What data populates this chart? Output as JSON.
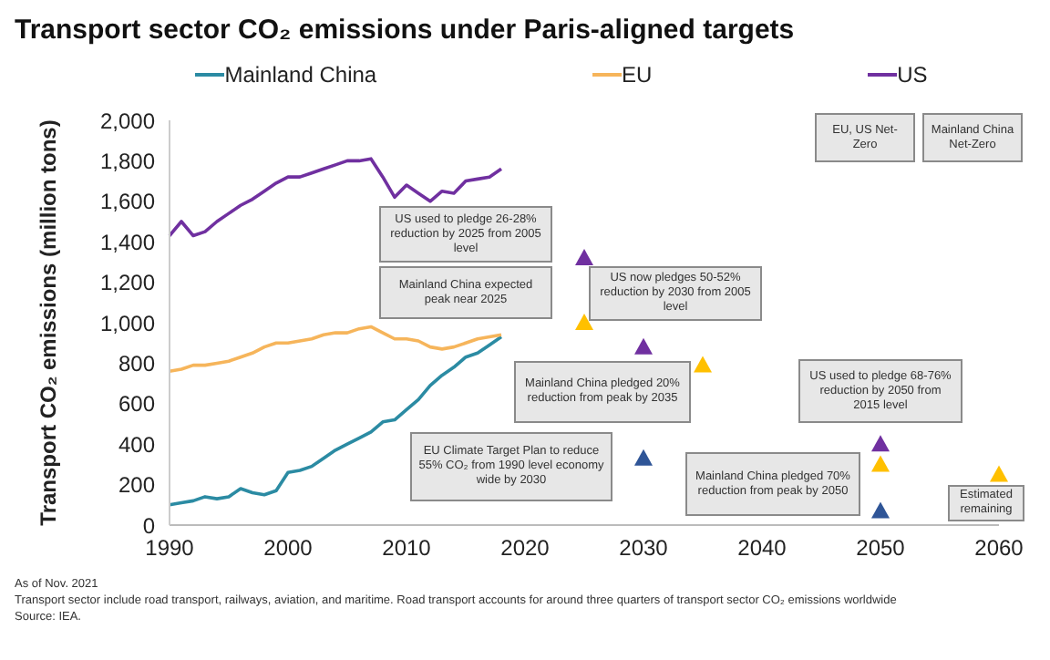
{
  "chart_data": {
    "type": "line",
    "title": "Transport sector CO₂ emissions under Paris-aligned targets",
    "ylabel": "Transport CO₂ emissions (million tons)",
    "xlim": [
      1990,
      2060
    ],
    "xticks": [
      1990,
      2000,
      2010,
      2020,
      2030,
      2040,
      2050,
      2060
    ],
    "ylim": [
      0,
      2000
    ],
    "yticks": [
      0,
      200,
      400,
      600,
      800,
      {
        "value": 1000,
        "label": "1,000"
      },
      {
        "value": 1200,
        "label": "1,200"
      },
      {
        "value": 1400,
        "label": "1,400"
      },
      {
        "value": 1600,
        "label": "1,600"
      },
      {
        "value": 1800,
        "label": "1,800"
      },
      {
        "value": 2000,
        "label": "2,000"
      }
    ],
    "grid": false,
    "legend": "top",
    "line_style": "solid",
    "series": [
      {
        "name": "Mainland China",
        "color": "#2b8ba3",
        "marker": "none",
        "x": [
          1990,
          1991,
          1992,
          1993,
          1994,
          1995,
          1996,
          1997,
          1998,
          1999,
          2000,
          2001,
          2002,
          2003,
          2004,
          2005,
          2006,
          2007,
          2008,
          2009,
          2010,
          2011,
          2012,
          2013,
          2014,
          2015,
          2016,
          2017,
          2018
        ],
        "values": [
          100,
          110,
          120,
          140,
          130,
          140,
          180,
          160,
          150,
          170,
          260,
          270,
          290,
          330,
          370,
          400,
          430,
          460,
          510,
          520,
          570,
          620,
          690,
          740,
          780,
          830,
          850,
          890,
          930
        ]
      },
      {
        "name": "EU",
        "color": "#f6b55b",
        "marker": "none",
        "x": [
          1990,
          1991,
          1992,
          1993,
          1994,
          1995,
          1996,
          1997,
          1998,
          1999,
          2000,
          2001,
          2002,
          2003,
          2004,
          2005,
          2006,
          2007,
          2008,
          2009,
          2010,
          2011,
          2012,
          2013,
          2014,
          2015,
          2016,
          2017,
          2018
        ],
        "values": [
          760,
          770,
          790,
          790,
          800,
          810,
          830,
          850,
          880,
          900,
          900,
          910,
          920,
          940,
          950,
          950,
          970,
          980,
          950,
          920,
          920,
          910,
          880,
          870,
          880,
          900,
          920,
          930,
          940
        ]
      },
      {
        "name": "US",
        "color": "#7030a0",
        "marker": "none",
        "x": [
          1990,
          1991,
          1992,
          1993,
          1994,
          1995,
          1996,
          1997,
          1998,
          1999,
          2000,
          2001,
          2002,
          2003,
          2004,
          2005,
          2006,
          2007,
          2008,
          2009,
          2010,
          2011,
          2012,
          2013,
          2014,
          2015,
          2016,
          2017,
          2018
        ],
        "values": [
          1430,
          1500,
          1430,
          1450,
          1500,
          1540,
          1580,
          1610,
          1650,
          1690,
          1720,
          1720,
          1740,
          1760,
          1780,
          1800,
          1800,
          1810,
          1720,
          1620,
          1680,
          1640,
          1600,
          1650,
          1640,
          1700,
          1710,
          1720,
          1760
        ]
      },
      {
        "type": "scatter",
        "color": "#7030a0",
        "marker": "triangle",
        "x": [
          2025,
          2030,
          2050
        ],
        "values": [
          1320,
          880,
          400
        ]
      },
      {
        "type": "scatter",
        "color": "#ffc000",
        "marker": "triangle",
        "x": [
          2025,
          2035,
          2050,
          2060
        ],
        "values": [
          1000,
          790,
          300,
          250
        ]
      },
      {
        "type": "scatter",
        "color": "#2f5597",
        "marker": "triangle",
        "x": [
          2030,
          2050
        ],
        "values": [
          330,
          70
        ]
      }
    ],
    "annotations": [
      "US used to pledge 26-28% reduction by 2025 from 2005 level",
      "Mainland China expected peak near 2025",
      "US now pledges 50-52% reduction by 2030 from 2005 level",
      "Mainland China pledged 20% reduction from peak by 2035",
      "EU Climate Target Plan to reduce 55% CO₂ from 1990 level economy wide by 2030",
      "Mainland China pledged 70% reduction from peak by 2050",
      "US used to pledge 68-76% reduction by 2050 from 2015 level",
      "EU, US Net-Zero",
      "Mainland China Net-Zero",
      "Estimated remaining",
      "As of Nov. 2021",
      "Transport sector include road transport, railways, aviation, and maritime. Road transport accounts for around three quarters of transport sector CO₂ emissions worldwide",
      "Source: IEA."
    ]
  }
}
